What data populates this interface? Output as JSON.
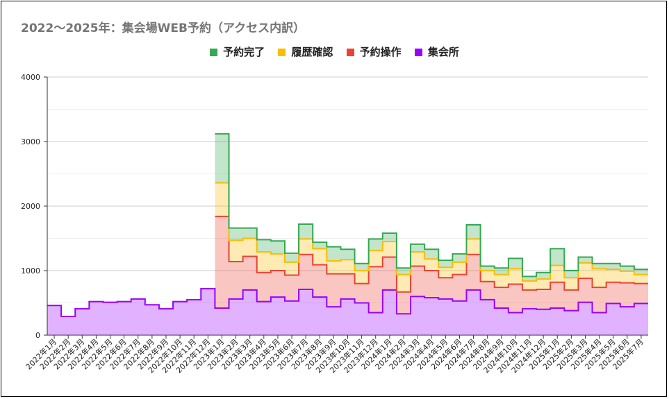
{
  "chart_data": {
    "type": "area",
    "stacked": true,
    "step": true,
    "title": "2022〜2025年：集会場WEB予約（アクセス内訳）",
    "xlabel": "",
    "ylabel": "",
    "ylim": [
      0,
      4000
    ],
    "yticks": [
      0,
      1000,
      2000,
      3000,
      4000
    ],
    "grid": true,
    "legend_position": "top",
    "categories": [
      "2022年1月",
      "2022年2月",
      "2022年3月",
      "2022年4月",
      "2022年5月",
      "2022年6月",
      "2022年7月",
      "2022年8月",
      "2022年9月",
      "2022年10月",
      "2022年11月",
      "2022年12月",
      "2023年1月",
      "2023年2月",
      "2023年3月",
      "2023年4月",
      "2023年5月",
      "2023年6月",
      "2023年7月",
      "2023年8月",
      "2023年9月",
      "2023年10月",
      "2023年11月",
      "2023年12月",
      "2024年1月",
      "2024年2月",
      "2024年3月",
      "2024年4月",
      "2024年5月",
      "2024年6月",
      "2024年7月",
      "2024年8月",
      "2024年9月",
      "2024年10月",
      "2024年11月",
      "2024年12月",
      "2025年1月",
      "2025年2月",
      "2025年3月",
      "2025年4月",
      "2025年5月",
      "2025年6月",
      "2025年7月"
    ],
    "series": [
      {
        "name": "集会所",
        "color": "#9900ff",
        "values": [
          460,
          290,
          410,
          520,
          510,
          520,
          560,
          470,
          410,
          520,
          550,
          720,
          420,
          560,
          700,
          520,
          590,
          530,
          710,
          590,
          440,
          560,
          500,
          350,
          700,
          330,
          600,
          580,
          560,
          530,
          700,
          550,
          420,
          350,
          410,
          400,
          420,
          380,
          510,
          350,
          490,
          440,
          490
        ]
      },
      {
        "name": "予約操作",
        "color": "#ea4335",
        "values": [
          0,
          0,
          0,
          0,
          0,
          0,
          0,
          0,
          0,
          0,
          0,
          0,
          1420,
          580,
          520,
          450,
          410,
          400,
          540,
          500,
          510,
          390,
          300,
          710,
          510,
          340,
          470,
          420,
          330,
          410,
          550,
          280,
          320,
          440,
          290,
          310,
          400,
          320,
          370,
          390,
          330,
          370,
          310
        ]
      },
      {
        "name": "履歴確認",
        "color": "#fbbc04",
        "values": [
          0,
          0,
          0,
          0,
          0,
          0,
          0,
          0,
          0,
          0,
          0,
          0,
          520,
          330,
          280,
          320,
          260,
          200,
          240,
          250,
          200,
          220,
          200,
          250,
          240,
          270,
          220,
          180,
          160,
          190,
          240,
          170,
          200,
          240,
          140,
          160,
          260,
          190,
          240,
          290,
          200,
          180,
          140
        ]
      },
      {
        "name": "予約完了",
        "color": "#34a853",
        "values": [
          0,
          0,
          0,
          0,
          0,
          0,
          0,
          0,
          0,
          0,
          0,
          0,
          760,
          190,
          160,
          190,
          200,
          140,
          230,
          100,
          220,
          160,
          110,
          180,
          130,
          100,
          120,
          150,
          110,
          130,
          220,
          70,
          100,
          160,
          70,
          100,
          260,
          110,
          90,
          80,
          90,
          80,
          80
        ]
      }
    ]
  }
}
